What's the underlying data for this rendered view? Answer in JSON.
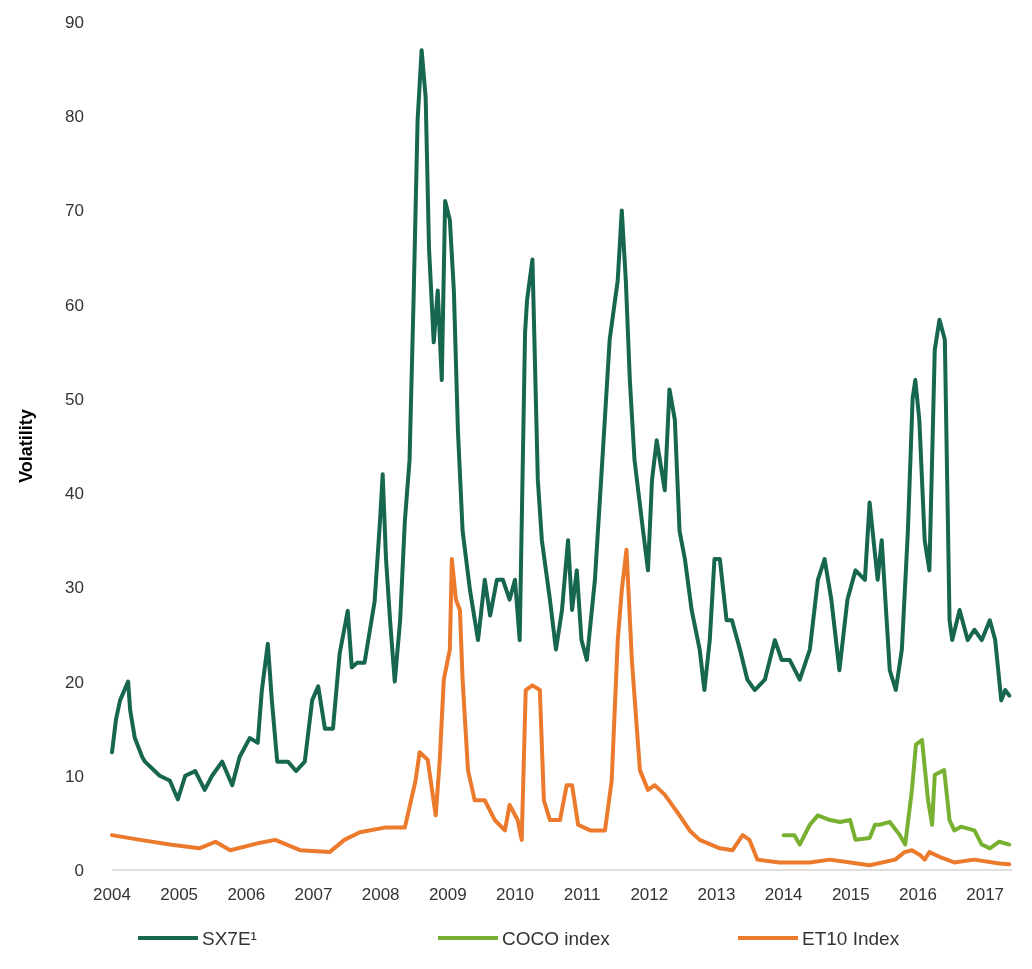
{
  "chart_data": {
    "type": "line",
    "ylabel": "Volatility",
    "xlim": [
      2004,
      2017.4
    ],
    "ylim": [
      0,
      90
    ],
    "xticks": [
      2004,
      2005,
      2006,
      2007,
      2008,
      2009,
      2010,
      2011,
      2012,
      2013,
      2014,
      2015,
      2016,
      2017
    ],
    "yticks": [
      0,
      10,
      20,
      30,
      40,
      50,
      60,
      70,
      80,
      90
    ],
    "grid": false,
    "legend": "bottom",
    "line_style": "solid",
    "marker": "none",
    "series": [
      {
        "name": "SX7E¹",
        "color": "#17664f",
        "x": [
          2004.0,
          2004.06,
          2004.12,
          2004.24,
          2004.27,
          2004.34,
          2004.45,
          2004.49,
          2004.71,
          2004.86,
          2004.98,
          2005.09,
          2005.24,
          2005.38,
          2005.49,
          2005.64,
          2005.79,
          2005.9,
          2006.05,
          2006.17,
          2006.23,
          2006.32,
          2006.38,
          2006.46,
          2006.62,
          2006.74,
          2006.87,
          2006.98,
          2007.07,
          2007.17,
          2007.29,
          2007.39,
          2007.51,
          2007.57,
          2007.65,
          2007.76,
          2007.91,
          2007.99,
          2008.03,
          2008.08,
          2008.14,
          2008.21,
          2008.29,
          2008.36,
          2008.43,
          2008.49,
          2008.55,
          2008.61,
          2008.67,
          2008.72,
          2008.79,
          2008.85,
          2008.91,
          2008.96,
          2009.03,
          2009.09,
          2009.15,
          2009.22,
          2009.33,
          2009.45,
          2009.55,
          2009.63,
          2009.73,
          2009.82,
          2009.92,
          2010.0,
          2010.07,
          2010.15,
          2010.18,
          2010.26,
          2010.34,
          2010.4,
          2010.52,
          2010.61,
          2010.7,
          2010.79,
          2010.85,
          2010.92,
          2010.99,
          2011.07,
          2011.19,
          2011.31,
          2011.41,
          2011.53,
          2011.59,
          2011.65,
          2011.71,
          2011.78,
          2011.89,
          2011.98,
          2012.04,
          2012.11,
          2012.23,
          2012.3,
          2012.38,
          2012.45,
          2012.53,
          2012.63,
          2012.75,
          2012.82,
          2012.9,
          2012.97,
          2013.05,
          2013.15,
          2013.23,
          2013.35,
          2013.46,
          2013.57,
          2013.72,
          2013.87,
          2013.97,
          2014.09,
          2014.24,
          2014.39,
          2014.51,
          2014.61,
          2014.71,
          2014.83,
          2014.95,
          2015.07,
          2015.21,
          2015.28,
          2015.4,
          2015.46,
          2015.58,
          2015.67,
          2015.76,
          2015.85,
          2015.92,
          2015.96,
          2016.02,
          2016.1,
          2016.17,
          2016.25,
          2016.32,
          2016.4,
          2016.47,
          2016.51,
          2016.62,
          2016.74,
          2016.84,
          2016.95,
          2017.07,
          2017.15,
          2017.24,
          2017.3,
          2017.36
        ],
        "values": [
          12.5,
          16,
          18,
          20,
          17,
          14,
          12,
          11.5,
          10,
          9.5,
          7.5,
          10,
          10.5,
          8.5,
          10,
          11.5,
          9,
          12,
          14,
          13.5,
          19,
          24,
          18,
          11.5,
          11.5,
          10.5,
          11.5,
          18,
          19.5,
          15,
          15,
          23,
          27.5,
          21.5,
          22,
          22,
          28.5,
          37,
          42,
          33,
          26.5,
          20,
          26.5,
          37,
          43.5,
          60.5,
          79.6,
          87,
          82,
          66,
          56,
          61.5,
          52,
          71,
          69,
          61.5,
          46.7,
          36,
          29.7,
          24.4,
          30.8,
          27,
          30.8,
          30.8,
          28.7,
          30.8,
          24.4,
          57,
          60.5,
          64.8,
          41.4,
          35,
          28.7,
          23.4,
          27.6,
          35,
          27.6,
          31.8,
          24.4,
          22.3,
          30.8,
          44.6,
          56.3,
          62.6,
          70,
          62.6,
          52,
          43.5,
          37,
          31.8,
          41.4,
          45.6,
          40.3,
          51,
          47.8,
          36,
          33,
          27.6,
          23.4,
          19.1,
          24.4,
          33,
          33,
          26.5,
          26.5,
          23.4,
          20.2,
          19.1,
          20.2,
          24.4,
          22.3,
          22.3,
          20.2,
          23.4,
          30.8,
          33,
          28.7,
          21.2,
          28.7,
          31.8,
          30.8,
          39,
          30.8,
          35,
          21.2,
          19.1,
          23.4,
          36,
          50,
          52,
          47.8,
          35,
          31.8,
          55.2,
          58.4,
          56.3,
          26.5,
          24.4,
          27.6,
          24.4,
          25.5,
          24.4,
          26.5,
          24.4,
          18,
          19.1,
          18.5
        ]
      },
      {
        "name": "COCO index",
        "color": "#78b131",
        "x": [
          2014.0,
          2014.16,
          2014.24,
          2014.39,
          2014.51,
          2014.69,
          2014.84,
          2014.99,
          2015.07,
          2015.28,
          2015.36,
          2015.43,
          2015.58,
          2015.73,
          2015.81,
          2015.91,
          2015.97,
          2016.06,
          2016.15,
          2016.21,
          2016.25,
          2016.39,
          2016.47,
          2016.54,
          2016.64,
          2016.84,
          2016.95,
          2017.07,
          2017.21,
          2017.36
        ],
        "values": [
          3.7,
          3.7,
          2.7,
          4.8,
          5.8,
          5.3,
          5.1,
          5.3,
          3.2,
          3.4,
          4.8,
          4.8,
          5.1,
          3.7,
          2.7,
          8.5,
          13.3,
          13.8,
          7.4,
          4.8,
          10.1,
          10.6,
          5.3,
          4.2,
          4.6,
          4.2,
          2.7,
          2.3,
          3,
          2.7
        ]
      },
      {
        "name": "ET10 Index",
        "color": "#ec7a2c",
        "x": [
          2004.0,
          2004.42,
          2004.86,
          2005.3,
          2005.54,
          2005.76,
          2006.21,
          2006.43,
          2006.8,
          2007.24,
          2007.46,
          2007.69,
          2008.06,
          2008.36,
          2008.52,
          2008.58,
          2008.7,
          2008.82,
          2008.88,
          2008.94,
          2009.03,
          2009.06,
          2009.12,
          2009.18,
          2009.22,
          2009.3,
          2009.4,
          2009.55,
          2009.7,
          2009.85,
          2009.92,
          2010.04,
          2010.1,
          2010.16,
          2010.26,
          2010.37,
          2010.43,
          2010.52,
          2010.67,
          2010.77,
          2010.85,
          2010.94,
          2011.12,
          2011.34,
          2011.44,
          2011.53,
          2011.59,
          2011.66,
          2011.74,
          2011.86,
          2011.98,
          2012.08,
          2012.23,
          2012.45,
          2012.6,
          2012.75,
          2013.05,
          2013.24,
          2013.39,
          2013.49,
          2013.61,
          2013.94,
          2014.39,
          2014.69,
          2014.99,
          2015.28,
          2015.66,
          2015.8,
          2015.91,
          2016.03,
          2016.1,
          2016.17,
          2016.32,
          2016.54,
          2016.84,
          2017.21,
          2017.36
        ],
        "values": [
          3.7,
          3.2,
          2.7,
          2.3,
          3,
          2.1,
          2.9,
          3.2,
          2.1,
          1.9,
          3.2,
          4,
          4.5,
          4.5,
          9.5,
          12.5,
          11.7,
          5.8,
          11.7,
          20.2,
          23.4,
          33,
          28.7,
          27.6,
          20.2,
          10.6,
          7.4,
          7.4,
          5.3,
          4.2,
          6.9,
          5.3,
          3.2,
          19.1,
          19.6,
          19.1,
          7.4,
          5.3,
          5.3,
          9,
          9,
          4.8,
          4.2,
          4.2,
          9.5,
          24.4,
          29.7,
          34,
          22.3,
          10.6,
          8.5,
          9,
          8,
          5.8,
          4.2,
          3.2,
          2.3,
          2.1,
          3.7,
          3.2,
          1.1,
          0.8,
          0.8,
          1.1,
          0.8,
          0.5,
          1.1,
          1.9,
          2.1,
          1.6,
          1.1,
          1.9,
          1.4,
          0.8,
          1.1,
          0.7,
          0.6
        ]
      }
    ]
  }
}
